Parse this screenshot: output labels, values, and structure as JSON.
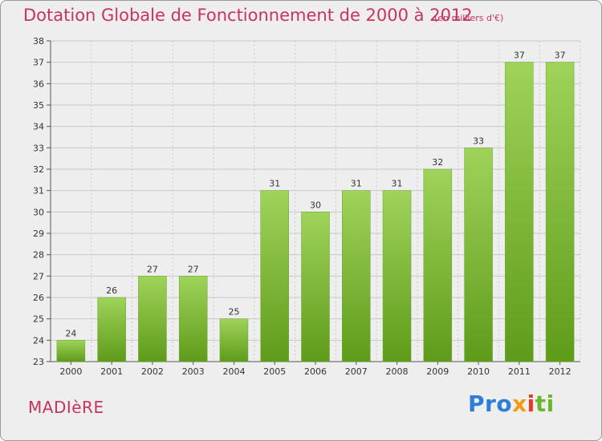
{
  "header": {
    "title": "Dotation Globale de Fonctionnement de 2000 à 2012",
    "unit": "(en milliers d'€)"
  },
  "footer": {
    "commune": "MADIèRE",
    "logo_parts": [
      "Pro",
      "x",
      "i",
      "ti"
    ]
  },
  "colors": {
    "title": "#c8345b",
    "bar_light": "#9fd35a",
    "bar_dark": "#5f9b1a",
    "grid": "#c8c8c8"
  },
  "chart_data": {
    "type": "bar",
    "title": "Dotation Globale de Fonctionnement de 2000 à 2012",
    "subtitle": "(en milliers d'€)",
    "categories": [
      "2000",
      "2001",
      "2002",
      "2003",
      "2004",
      "2005",
      "2006",
      "2007",
      "2008",
      "2009",
      "2010",
      "2011",
      "2012"
    ],
    "values": [
      24,
      26,
      27,
      27,
      25,
      31,
      30,
      31,
      31,
      32,
      33,
      37,
      37
    ],
    "ylim": [
      23,
      38
    ],
    "yticks": [
      23,
      24,
      25,
      26,
      27,
      28,
      29,
      30,
      31,
      32,
      33,
      34,
      35,
      36,
      37,
      38
    ],
    "grid": true,
    "legend": "none"
  }
}
